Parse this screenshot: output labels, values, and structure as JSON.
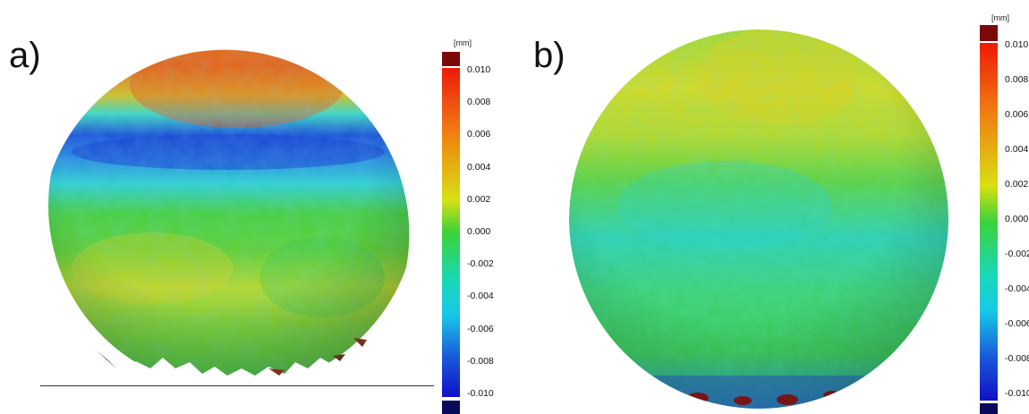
{
  "panels": [
    {
      "label": "a)",
      "unit": "[mm]",
      "ticks": [
        "0.010",
        "0.008",
        "0.006",
        "0.004",
        "0.002",
        "0.000",
        "-0.002",
        "-0.004",
        "-0.006",
        "-0.008",
        "-0.010"
      ]
    },
    {
      "label": "b)",
      "unit": "[mm]",
      "ticks": [
        "0.010",
        "0.008",
        "0.006",
        "0.004",
        "0.002",
        "0.000",
        "-0.002",
        "-0.004",
        "-0.006",
        "-0.008",
        "-0.010"
      ]
    }
  ],
  "colors": {
    "scale_top": "#7a0a0a",
    "scale_bottom": "#0a0a5a",
    "red": "#ee2a10",
    "orange": "#f08a10",
    "yellow": "#e6e00e",
    "green": "#3cd23a",
    "cyan": "#18d8e0",
    "blue": "#1a58d8",
    "darkblue": "#1010c8"
  }
}
